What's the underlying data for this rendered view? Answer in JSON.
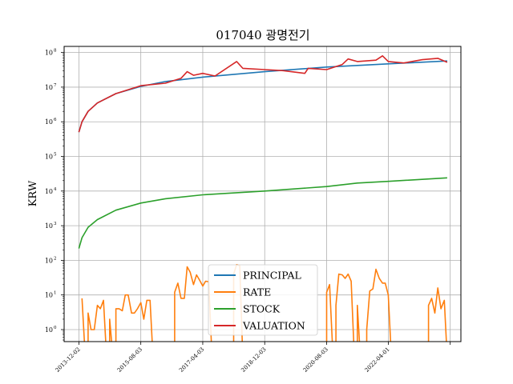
{
  "chart_data": {
    "type": "line",
    "title": "017040 광명전기",
    "xlabel": "",
    "ylabel": "KRW",
    "yscale": "log",
    "ylim": [
      0.45,
      150000000
    ],
    "xlim": [
      "2013-07-10",
      "2024-03-15"
    ],
    "grid": true,
    "legend": "center-bottom",
    "x_ticks": [
      "2013-12-02",
      "2015-08-03",
      "2017-04-03",
      "2018-12-03",
      "2020-08-03",
      "2022-04-01",
      "2023-12-01"
    ],
    "x_tick_labels": [
      "2013-12-02",
      "2015-08-03",
      "2017-04-03",
      "2018-12-03",
      "2020-08-03",
      "2022-04-01",
      ""
    ],
    "y_ticks": [
      {
        "value": 1,
        "base": "10",
        "exp": "0"
      },
      {
        "value": 10,
        "base": "10",
        "exp": "1"
      },
      {
        "value": 100,
        "base": "10",
        "exp": "2"
      },
      {
        "value": 1000,
        "base": "10",
        "exp": "3"
      },
      {
        "value": 10000,
        "base": "10",
        "exp": "4"
      },
      {
        "value": 100000,
        "base": "10",
        "exp": "5"
      },
      {
        "value": 1000000,
        "base": "10",
        "exp": "6"
      },
      {
        "value": 10000000,
        "base": "10",
        "exp": "7"
      },
      {
        "value": 100000000,
        "base": "10",
        "exp": "8"
      }
    ],
    "series": [
      {
        "name": "PRINCIPAL",
        "color": "#1f77b4",
        "points": [
          [
            "2013-12-02",
            500000
          ],
          [
            "2014-01-02",
            1000000
          ],
          [
            "2014-03-03",
            2000000
          ],
          [
            "2014-06-02",
            3500000
          ],
          [
            "2014-12-01",
            6500000
          ],
          [
            "2015-08-03",
            10500000
          ],
          [
            "2016-04-01",
            14500000
          ],
          [
            "2017-04-03",
            19500000
          ],
          [
            "2018-12-03",
            28000000
          ],
          [
            "2020-08-03",
            38000000
          ],
          [
            "2022-04-01",
            47000000
          ],
          [
            "2023-11-01",
            57000000
          ]
        ]
      },
      {
        "name": "RATE",
        "color": "#ff7f0e",
        "points": [
          [
            "2013-12-02",
            null
          ],
          [
            "2014-01-02",
            8
          ],
          [
            "2014-02-03",
            null
          ],
          [
            "2014-03-03",
            3
          ],
          [
            "2014-04-01",
            1
          ],
          [
            "2014-05-02",
            1
          ],
          [
            "2014-06-02",
            5
          ],
          [
            "2014-07-01",
            4
          ],
          [
            "2014-08-01",
            7
          ],
          [
            "2014-09-01",
            null
          ],
          [
            "2014-10-01",
            2
          ],
          [
            "2014-11-03",
            null
          ],
          [
            "2014-12-01",
            4
          ],
          [
            "2015-01-02",
            4
          ],
          [
            "2015-02-02",
            3.5
          ],
          [
            "2015-03-03",
            10
          ],
          [
            "2015-04-01",
            10
          ],
          [
            "2015-05-04",
            3
          ],
          [
            "2015-06-01",
            3
          ],
          [
            "2015-07-01",
            4
          ],
          [
            "2015-08-03",
            6
          ],
          [
            "2015-09-01",
            2
          ],
          [
            "2015-10-01",
            7
          ],
          [
            "2015-11-02",
            7
          ],
          [
            "2015-12-01",
            null
          ],
          [
            "2016-06-01",
            null
          ],
          [
            "2016-07-01",
            12
          ],
          [
            "2016-08-01",
            22
          ],
          [
            "2016-09-01",
            8
          ],
          [
            "2016-10-04",
            8
          ],
          [
            "2016-11-01",
            65
          ],
          [
            "2016-12-01",
            45
          ],
          [
            "2017-01-02",
            20
          ],
          [
            "2017-02-01",
            38
          ],
          [
            "2017-03-02",
            27
          ],
          [
            "2017-04-03",
            18
          ],
          [
            "2017-05-01",
            25
          ],
          [
            "2017-06-01",
            24
          ],
          [
            "2017-07-03",
            null
          ],
          [
            "2018-01-02",
            null
          ],
          [
            "2018-02-01",
            40
          ],
          [
            "2018-03-02",
            75
          ],
          [
            "2018-04-02",
            70
          ],
          [
            "2018-05-02",
            null
          ],
          [
            "2020-07-01",
            null
          ],
          [
            "2020-08-03",
            12
          ],
          [
            "2020-09-01",
            20
          ],
          [
            "2020-10-05",
            null
          ],
          [
            "2020-11-02",
            5
          ],
          [
            "2020-12-01",
            40
          ],
          [
            "2021-01-04",
            38
          ],
          [
            "2021-02-01",
            30
          ],
          [
            "2021-03-02",
            40
          ],
          [
            "2021-04-01",
            25
          ],
          [
            "2021-05-03",
            null
          ],
          [
            "2021-06-01",
            5
          ],
          [
            "2021-07-01",
            null
          ],
          [
            "2021-09-01",
            1
          ],
          [
            "2021-10-01",
            13
          ],
          [
            "2021-11-01",
            15
          ],
          [
            "2021-12-01",
            55
          ],
          [
            "2022-01-03",
            30
          ],
          [
            "2022-02-03",
            22
          ],
          [
            "2022-03-02",
            22
          ],
          [
            "2022-04-01",
            10
          ],
          [
            "2022-05-02",
            null
          ],
          [
            "2023-05-02",
            5
          ],
          [
            "2023-06-01",
            8
          ],
          [
            "2023-07-03",
            3
          ],
          [
            "2023-08-01",
            16
          ],
          [
            "2023-09-01",
            4
          ],
          [
            "2023-10-04",
            7
          ],
          [
            "2023-11-01",
            null
          ]
        ]
      },
      {
        "name": "STOCK",
        "color": "#2ca02c",
        "points": [
          [
            "2013-12-02",
            220
          ],
          [
            "2014-01-02",
            450
          ],
          [
            "2014-03-03",
            900
          ],
          [
            "2014-06-02",
            1500
          ],
          [
            "2014-12-01",
            2800
          ],
          [
            "2015-08-03",
            4500
          ],
          [
            "2016-04-01",
            6000
          ],
          [
            "2017-04-03",
            7800
          ],
          [
            "2018-12-03",
            10000
          ],
          [
            "2020-08-03",
            13500
          ],
          [
            "2021-06-01",
            17000
          ],
          [
            "2022-04-01",
            19000
          ],
          [
            "2023-11-01",
            24000
          ]
        ]
      },
      {
        "name": "VALUATION",
        "color": "#d62728",
        "points": [
          [
            "2013-12-02",
            500000
          ],
          [
            "2014-01-02",
            1000000
          ],
          [
            "2014-03-03",
            2000000
          ],
          [
            "2014-06-02",
            3500000
          ],
          [
            "2014-12-01",
            6500000
          ],
          [
            "2015-08-03",
            11000000
          ],
          [
            "2016-04-01",
            13000000
          ],
          [
            "2016-09-01",
            18000000
          ],
          [
            "2016-11-01",
            28000000
          ],
          [
            "2017-01-02",
            22000000
          ],
          [
            "2017-04-03",
            25000000
          ],
          [
            "2017-08-01",
            21000000
          ],
          [
            "2018-03-02",
            55000000
          ],
          [
            "2018-05-02",
            35000000
          ],
          [
            "2018-12-03",
            32000000
          ],
          [
            "2019-06-03",
            30000000
          ],
          [
            "2020-01-02",
            25000000
          ],
          [
            "2020-02-03",
            35000000
          ],
          [
            "2020-08-03",
            32000000
          ],
          [
            "2021-01-04",
            45000000
          ],
          [
            "2021-03-02",
            65000000
          ],
          [
            "2021-06-01",
            55000000
          ],
          [
            "2021-12-01",
            60000000
          ],
          [
            "2022-02-03",
            80000000
          ],
          [
            "2022-04-01",
            55000000
          ],
          [
            "2022-09-01",
            50000000
          ],
          [
            "2023-03-02",
            62000000
          ],
          [
            "2023-08-01",
            68000000
          ],
          [
            "2023-11-01",
            52000000
          ]
        ]
      }
    ]
  }
}
